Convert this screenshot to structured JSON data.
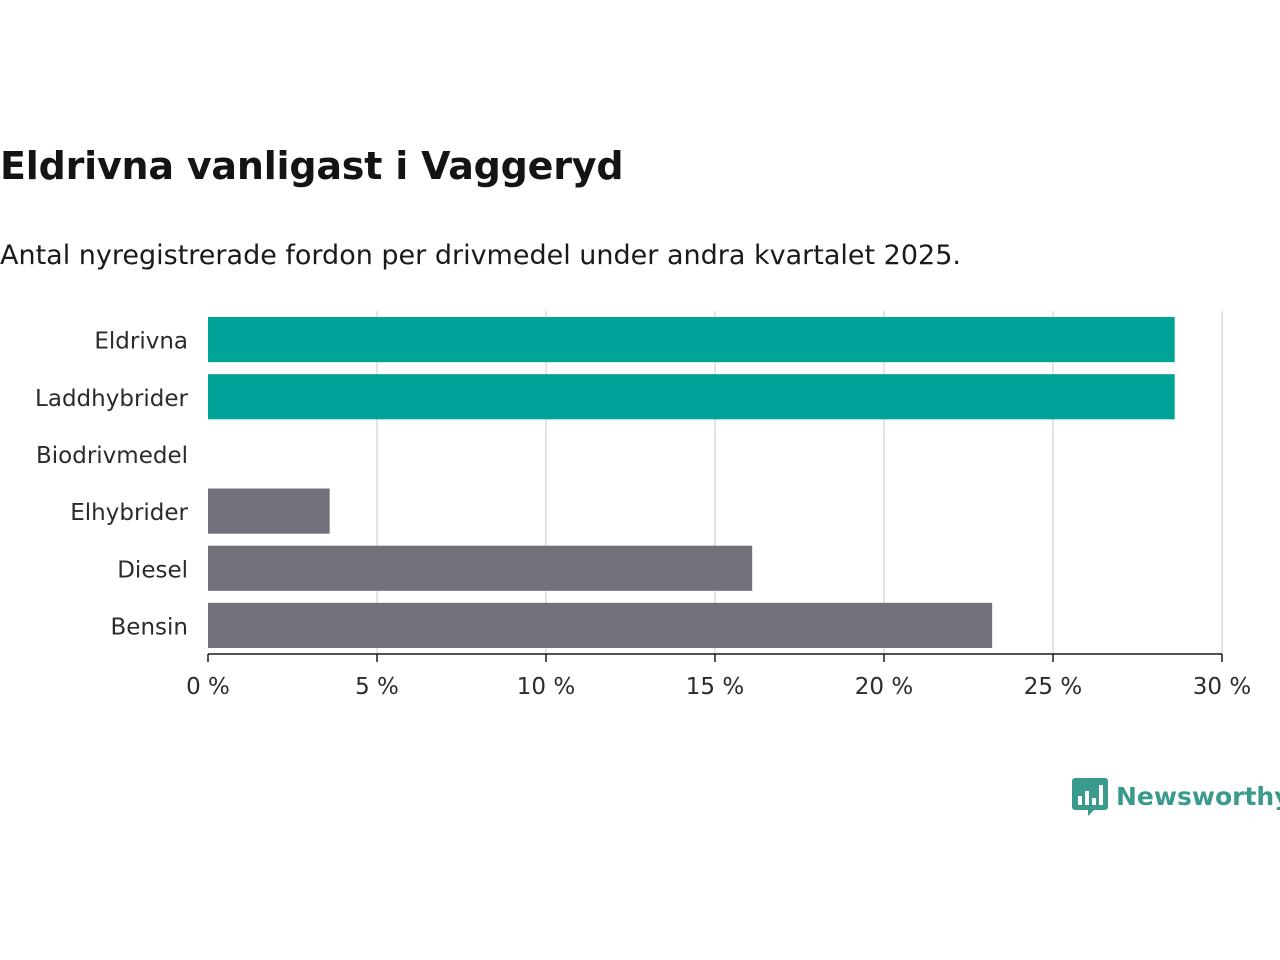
{
  "header": {
    "title": "Eldrivna vanligast i Vaggeryd",
    "subtitle": "Antal nyregistrerade fordon per drivmedel under andra kvartalet 2025."
  },
  "logo": {
    "text": "Newsworthy",
    "icon": "bar-chart-speech-bubble-icon"
  },
  "chart_data": {
    "type": "bar",
    "orientation": "horizontal",
    "title": "Eldrivna vanligast i Vaggeryd",
    "subtitle": "Antal nyregistrerade fordon per drivmedel under andra kvartalet 2025.",
    "categories": [
      "Eldrivna",
      "Laddhybrider",
      "Biodrivmedel",
      "Elhybrider",
      "Diesel",
      "Bensin"
    ],
    "values": [
      28.6,
      28.6,
      0,
      3.6,
      16.1,
      23.2
    ],
    "bar_colors": [
      "#00a398",
      "#00a398",
      "#72707a",
      "#72707a",
      "#72707a",
      "#72707a"
    ],
    "xlim": [
      0,
      30
    ],
    "xticks": [
      0,
      5,
      10,
      15,
      20,
      25,
      30
    ],
    "xtick_labels": [
      "0 %",
      "5 %",
      "10 %",
      "15 %",
      "20 %",
      "25 %",
      "30 %"
    ],
    "xlabel": "",
    "ylabel": "",
    "grid": true
  }
}
